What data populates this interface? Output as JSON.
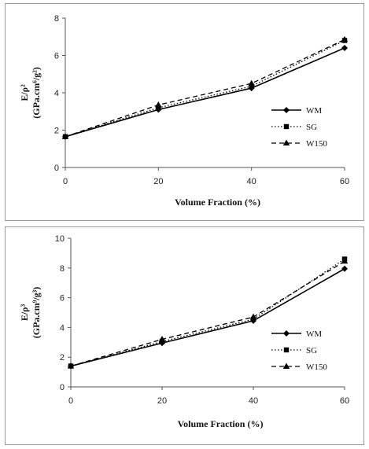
{
  "chart_data": [
    {
      "type": "line",
      "xlabel": "Volume Fraction (%)",
      "ylabel": "E/ρ²",
      "yunit": "(GPa.cm⁶/g²)",
      "x": [
        0,
        20,
        40,
        60
      ],
      "xticks": [
        "0",
        "20",
        "40",
        "60"
      ],
      "yticks": [
        "0",
        "2",
        "4",
        "6",
        "8"
      ],
      "xlim": [
        0,
        60
      ],
      "ylim": [
        0,
        8
      ],
      "legend_position": "right",
      "series": [
        {
          "name": "WM",
          "values": [
            1.65,
            3.1,
            4.25,
            6.4
          ],
          "marker": "diamond",
          "dash": "solid",
          "color": "#000000"
        },
        {
          "name": "SG",
          "values": [
            1.65,
            3.2,
            4.35,
            6.8
          ],
          "marker": "square",
          "dash": "dotted",
          "color": "#000000"
        },
        {
          "name": "W150",
          "values": [
            1.65,
            3.35,
            4.5,
            6.85
          ],
          "marker": "triangle",
          "dash": "dashed",
          "color": "#000000"
        }
      ]
    },
    {
      "type": "line",
      "xlabel": "Volume Fraction (%)",
      "ylabel": "E/ρ³",
      "yunit": "(GPa.cm⁹/g³)",
      "x": [
        0,
        20,
        40,
        60
      ],
      "xticks": [
        "0",
        "20",
        "40",
        "60"
      ],
      "yticks": [
        "0",
        "2",
        "4",
        "6",
        "8",
        "10"
      ],
      "xlim": [
        0,
        60
      ],
      "ylim": [
        0,
        10
      ],
      "legend_position": "right",
      "series": [
        {
          "name": "WM",
          "values": [
            1.4,
            2.95,
            4.45,
            7.95
          ],
          "marker": "diamond",
          "dash": "solid",
          "color": "#000000"
        },
        {
          "name": "SG",
          "values": [
            1.4,
            3.05,
            4.55,
            8.6
          ],
          "marker": "square",
          "dash": "dotted",
          "color": "#000000"
        },
        {
          "name": "W150",
          "values": [
            1.4,
            3.2,
            4.7,
            8.45
          ],
          "marker": "triangle",
          "dash": "dashed",
          "color": "#000000"
        }
      ]
    }
  ]
}
